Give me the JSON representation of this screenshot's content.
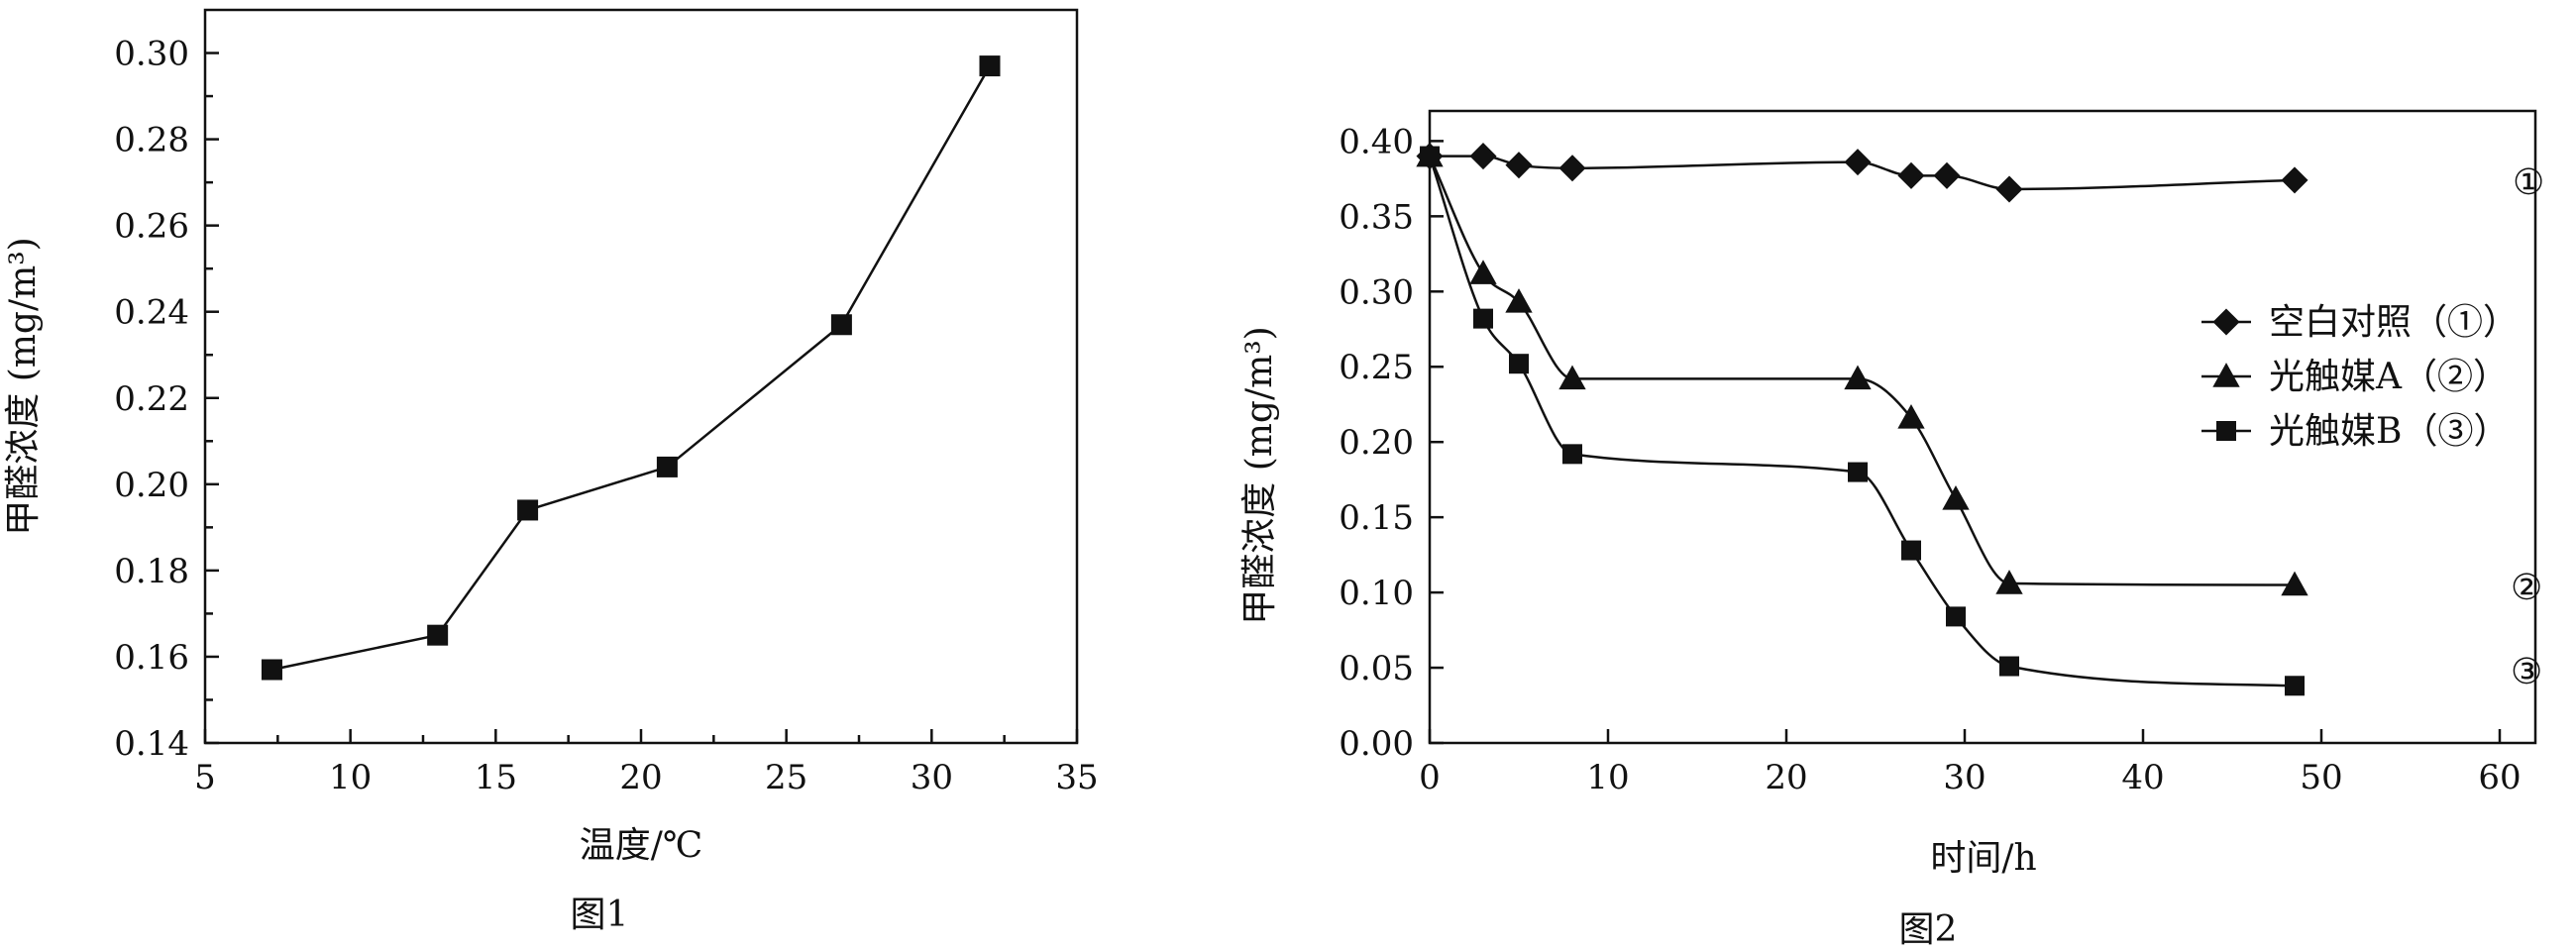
{
  "chart_data": [
    {
      "type": "line",
      "caption": "图1",
      "xlabel": "温度/℃",
      "ylabel": "甲醛浓度 (mg/m³)",
      "xlim": [
        5,
        35
      ],
      "ylim": [
        0.14,
        0.31
      ],
      "xticks": [
        "5",
        "10",
        "15",
        "20",
        "25",
        "30",
        "35"
      ],
      "yticks": [
        "0.14",
        "0.16",
        "0.18",
        "0.20",
        "0.22",
        "0.24",
        "0.26",
        "0.28",
        "0.30"
      ],
      "grid": false,
      "series": [
        {
          "marker": "square",
          "x": [
            7.3,
            13.0,
            16.1,
            20.9,
            26.9,
            32.0
          ],
          "y": [
            0.157,
            0.165,
            0.194,
            0.204,
            0.237,
            0.297
          ]
        }
      ]
    },
    {
      "type": "line",
      "caption": "图2",
      "xlabel": "时间/h",
      "ylabel": "甲醛浓度 (mg/m³)",
      "xlim": [
        0,
        62
      ],
      "ylim": [
        0,
        0.42
      ],
      "xticks": [
        "0",
        "10",
        "20",
        "30",
        "40",
        "50",
        "60"
      ],
      "yticks": [
        "0.00",
        "0.05",
        "0.10",
        "0.15",
        "0.20",
        "0.25",
        "0.30",
        "0.35",
        "0.40"
      ],
      "grid": false,
      "legend_placement": "right",
      "series": [
        {
          "name": "空白对照（①）",
          "callout": "①",
          "marker": "diamond",
          "x": [
            0,
            3,
            5,
            8,
            24,
            27,
            29,
            32.5,
            48.5
          ],
          "y": [
            0.39,
            0.39,
            0.384,
            0.382,
            0.386,
            0.377,
            0.377,
            0.368,
            0.374
          ]
        },
        {
          "name": "光触媒A（②）",
          "callout": "②",
          "marker": "triangle",
          "x": [
            0,
            3,
            5,
            8,
            24,
            27,
            29.5,
            32.5,
            48.5
          ],
          "y": [
            0.39,
            0.312,
            0.293,
            0.242,
            0.242,
            0.216,
            0.162,
            0.106,
            0.105
          ]
        },
        {
          "name": "光触媒B（③）",
          "callout": "③",
          "marker": "square",
          "x": [
            0,
            3,
            5,
            8,
            24,
            27,
            29.5,
            32.5,
            48.5
          ],
          "y": [
            0.39,
            0.282,
            0.252,
            0.192,
            0.18,
            0.128,
            0.084,
            0.051,
            0.038
          ]
        }
      ]
    }
  ]
}
